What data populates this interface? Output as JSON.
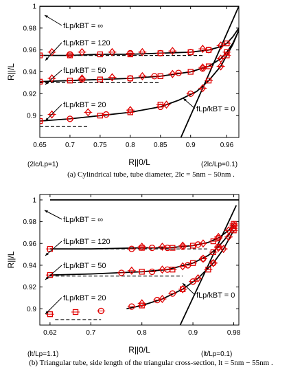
{
  "chart_data": [
    {
      "type": "line",
      "panel": "a",
      "xlabel": "R||0/L",
      "ylabel": "R||/L",
      "xlim": [
        0.65,
        0.98
      ],
      "ylim": [
        0.88,
        1.0
      ],
      "xticks": [
        0.65,
        0.7,
        0.75,
        0.8,
        0.85,
        0.9,
        0.96
      ],
      "xtick_labels": [
        "0.65",
        "0.7",
        "0.75",
        "0.8",
        "0.85",
        "0.9",
        "0.96"
      ],
      "yticks": [
        0.9,
        0.92,
        0.94,
        0.96,
        0.98,
        1.0
      ],
      "ytick_labels": [
        "0.9",
        "0.92",
        "0.94",
        "0.96",
        "0.98",
        "1"
      ],
      "x_endpoint_labels": {
        "left": "(2lc/Lp=1)",
        "right": "(2lc/Lp=0.1)"
      },
      "curves": [
        {
          "label": "fLp/kBT = ∞",
          "style": "solid",
          "x": [
            0.65,
            0.98
          ],
          "y": [
            1.0,
            1.0
          ]
        },
        {
          "label": "fLp/kBT = 120",
          "style": "solid",
          "x": [
            0.65,
            0.7,
            0.75,
            0.8,
            0.85,
            0.9,
            0.93,
            0.95,
            0.96,
            0.97,
            0.98
          ],
          "y": [
            0.955,
            0.955,
            0.956,
            0.956,
            0.957,
            0.958,
            0.96,
            0.963,
            0.966,
            0.972,
            0.98
          ]
        },
        {
          "label": "fLp/kBT = 50",
          "style": "solid",
          "x": [
            0.65,
            0.7,
            0.75,
            0.8,
            0.85,
            0.9,
            0.93,
            0.95,
            0.96,
            0.97,
            0.98
          ],
          "y": [
            0.931,
            0.932,
            0.933,
            0.934,
            0.936,
            0.94,
            0.945,
            0.952,
            0.958,
            0.966,
            0.978
          ]
        },
        {
          "label": "fLp/kBT = 20",
          "style": "solid",
          "x": [
            0.65,
            0.7,
            0.75,
            0.8,
            0.85,
            0.88,
            0.91,
            0.93,
            0.95,
            0.96,
            0.97,
            0.98
          ],
          "y": [
            0.895,
            0.897,
            0.9,
            0.903,
            0.908,
            0.914,
            0.922,
            0.932,
            0.945,
            0.955,
            0.965,
            0.978
          ]
        },
        {
          "label": "fLp/kBT = 0",
          "style": "solid",
          "x": [
            0.884,
            0.98
          ],
          "y": [
            0.88,
            1.0
          ]
        },
        {
          "label": "",
          "style": "dashed",
          "x": [
            0.65,
            0.92
          ],
          "y": [
            0.955,
            0.955
          ]
        },
        {
          "label": "",
          "style": "dashed",
          "x": [
            0.65,
            0.85
          ],
          "y": [
            0.93,
            0.93
          ]
        },
        {
          "label": "",
          "style": "dashed",
          "x": [
            0.65,
            0.73
          ],
          "y": [
            0.89,
            0.89
          ]
        }
      ],
      "markers": [
        {
          "shape": "square",
          "x": [
            0.65,
            0.7,
            0.75,
            0.8,
            0.85,
            0.9,
            0.93,
            0.96
          ],
          "y": [
            0.955,
            0.955,
            0.956,
            0.956,
            0.957,
            0.958,
            0.96,
            0.966
          ]
        },
        {
          "shape": "circle",
          "x": [
            0.7,
            0.8,
            0.85,
            0.9,
            0.93
          ],
          "y": [
            0.956,
            0.957,
            0.957,
            0.958,
            0.96
          ]
        },
        {
          "shape": "diamond",
          "x": [
            0.67,
            0.72,
            0.77,
            0.82,
            0.87,
            0.92,
            0.95
          ],
          "y": [
            0.958,
            0.958,
            0.958,
            0.958,
            0.959,
            0.961,
            0.964
          ]
        },
        {
          "shape": "square",
          "x": [
            0.65,
            0.7,
            0.75,
            0.8,
            0.85,
            0.9,
            0.93,
            0.96
          ],
          "y": [
            0.931,
            0.932,
            0.933,
            0.934,
            0.936,
            0.94,
            0.945,
            0.958
          ]
        },
        {
          "shape": "circle",
          "x": [
            0.72,
            0.8,
            0.84,
            0.88,
            0.92
          ],
          "y": [
            0.933,
            0.934,
            0.936,
            0.939,
            0.943
          ]
        },
        {
          "shape": "diamond",
          "x": [
            0.67,
            0.72,
            0.77,
            0.82,
            0.87,
            0.92,
            0.95
          ],
          "y": [
            0.934,
            0.934,
            0.935,
            0.936,
            0.938,
            0.944,
            0.952
          ]
        },
        {
          "shape": "square",
          "x": [
            0.65,
            0.75,
            0.8,
            0.85,
            0.93,
            0.96
          ],
          "y": [
            0.895,
            0.9,
            0.903,
            0.91,
            0.932,
            0.955
          ]
        },
        {
          "shape": "circle",
          "x": [
            0.7,
            0.76,
            0.85,
            0.9
          ],
          "y": [
            0.897,
            0.901,
            0.908,
            0.92
          ]
        },
        {
          "shape": "diamond",
          "x": [
            0.67,
            0.73,
            0.8,
            0.86,
            0.92,
            0.95
          ],
          "y": [
            0.901,
            0.903,
            0.905,
            0.91,
            0.925,
            0.945
          ]
        }
      ],
      "annotations": [
        "fLp/kBT = ∞",
        "fLp/kBT = 120",
        "fLp/kBT = 50",
        "fLp/kBT = 20",
        "fLp/kBT = 0"
      ],
      "caption": "(a) Cylindrical tube, tube diameter, 2lc = 5nm − 50nm ."
    },
    {
      "type": "line",
      "panel": "b",
      "xlabel": "R||0/L",
      "ylabel": "R||/L",
      "xlim": [
        0.6,
        0.99
      ],
      "ylim": [
        0.885,
        1.005
      ],
      "xticks": [
        0.62,
        0.7,
        0.8,
        0.9,
        0.98
      ],
      "xtick_labels": [
        "0.62",
        "0.7",
        "0.8",
        "0.9",
        "0.98"
      ],
      "yticks": [
        0.9,
        0.92,
        0.94,
        0.96,
        0.98,
        1.0
      ],
      "ytick_labels": [
        "0.9",
        "0.92",
        "0.94",
        "0.96",
        "0.98",
        "1"
      ],
      "x_endpoint_labels": {
        "left": "(lt/Lp=1.1)",
        "right": "(lt/Lp=0.1)"
      },
      "curves": [
        {
          "label": "fLp/kBT = ∞",
          "style": "solid",
          "x": [
            0.62,
            0.99
          ],
          "y": [
            1.0,
            1.0
          ]
        },
        {
          "label": "fLp/kBT = 120",
          "style": "solid",
          "x": [
            0.62,
            0.7,
            0.8,
            0.85,
            0.9,
            0.93,
            0.95,
            0.97,
            0.98
          ],
          "y": [
            0.955,
            0.955,
            0.956,
            0.956,
            0.958,
            0.961,
            0.965,
            0.972,
            0.978
          ]
        },
        {
          "label": "fLp/kBT = 50",
          "style": "solid",
          "x": [
            0.62,
            0.7,
            0.8,
            0.85,
            0.9,
            0.93,
            0.95,
            0.97,
            0.98
          ],
          "y": [
            0.931,
            0.932,
            0.934,
            0.936,
            0.942,
            0.949,
            0.957,
            0.968,
            0.976
          ]
        },
        {
          "label": "fLp/kBT = 20",
          "style": "solid",
          "x": [
            0.77,
            0.8,
            0.84,
            0.88,
            0.91,
            0.94,
            0.96,
            0.98
          ],
          "y": [
            0.9,
            0.903,
            0.909,
            0.918,
            0.928,
            0.942,
            0.955,
            0.972
          ]
        },
        {
          "label": "fLp/kBT = 0",
          "style": "solid",
          "x": [
            0.875,
            0.985
          ],
          "y": [
            0.885,
            0.995
          ]
        },
        {
          "label": "",
          "style": "dashed",
          "x": [
            0.62,
            0.93
          ],
          "y": [
            0.955,
            0.955
          ]
        },
        {
          "label": "",
          "style": "dashed",
          "x": [
            0.62,
            0.88
          ],
          "y": [
            0.93,
            0.93
          ]
        },
        {
          "label": "",
          "style": "dashed",
          "x": [
            0.63,
            0.72
          ],
          "y": [
            0.89,
            0.89
          ]
        }
      ],
      "markers": [
        {
          "shape": "square",
          "x": [
            0.62,
            0.8,
            0.86,
            0.9,
            0.94,
            0.98
          ],
          "y": [
            0.955,
            0.956,
            0.956,
            0.958,
            0.962,
            0.978
          ]
        },
        {
          "shape": "circle",
          "x": [
            0.78,
            0.82,
            0.85,
            0.88,
            0.91,
            0.95
          ],
          "y": [
            0.955,
            0.956,
            0.956,
            0.957,
            0.959,
            0.965
          ]
        },
        {
          "shape": "diamond",
          "x": [
            0.8,
            0.84,
            0.88,
            0.92,
            0.95,
            0.97,
            0.98
          ],
          "y": [
            0.957,
            0.957,
            0.958,
            0.96,
            0.966,
            0.972,
            0.977
          ]
        },
        {
          "shape": "square",
          "x": [
            0.62,
            0.8,
            0.86,
            0.9,
            0.94,
            0.98
          ],
          "y": [
            0.931,
            0.934,
            0.936,
            0.942,
            0.952,
            0.976
          ]
        },
        {
          "shape": "circle",
          "x": [
            0.76,
            0.82,
            0.85,
            0.89,
            0.92,
            0.95
          ],
          "y": [
            0.933,
            0.934,
            0.936,
            0.94,
            0.946,
            0.957
          ]
        },
        {
          "shape": "diamond",
          "x": [
            0.78,
            0.84,
            0.88,
            0.92,
            0.95,
            0.97,
            0.98
          ],
          "y": [
            0.935,
            0.936,
            0.939,
            0.946,
            0.956,
            0.966,
            0.974
          ]
        },
        {
          "shape": "square",
          "x": [
            0.62,
            0.67,
            0.8,
            0.88,
            0.93,
            0.98
          ],
          "y": [
            0.895,
            0.897,
            0.903,
            0.918,
            0.936,
            0.972
          ]
        },
        {
          "shape": "circle",
          "x": [
            0.72,
            0.78,
            0.83,
            0.86,
            0.9,
            0.94
          ],
          "y": [
            0.898,
            0.902,
            0.908,
            0.914,
            0.925,
            0.942
          ]
        },
        {
          "shape": "diamond",
          "x": [
            0.8,
            0.84,
            0.88,
            0.91,
            0.94,
            0.96
          ],
          "y": [
            0.905,
            0.909,
            0.918,
            0.928,
            0.942,
            0.955
          ]
        }
      ],
      "annotations": [
        "fLp/kBT = ∞",
        "fLp/kBT = 120",
        "fLp/kBT = 50",
        "fLp/kBT = 20",
        "fLp/kBT = 0"
      ],
      "caption": "(b) Triangular tube, side length of the triangular cross-section, lt = 5nm − 55nm ."
    }
  ],
  "colors": {
    "data": "#e00000",
    "curve": "#000000",
    "axis": "#000000"
  }
}
